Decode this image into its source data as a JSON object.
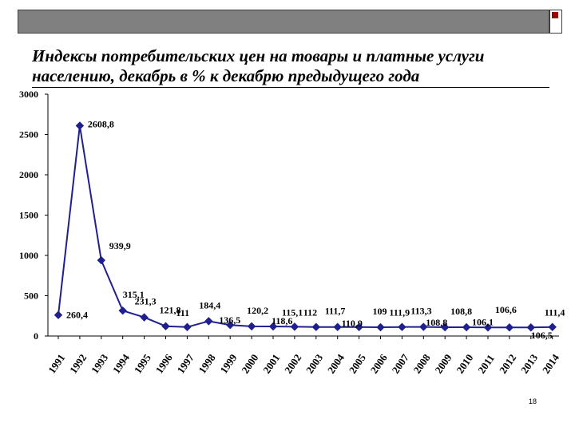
{
  "slide": {
    "title": "Индексы потребительских цен на товары и платные услуги населению, декабрь в % к декабрю предыдущего года",
    "page_number": "18"
  },
  "colors": {
    "line": "#1f1f8f",
    "marker": "#1f1f8f",
    "text": "#000000",
    "top_bar": "#808080",
    "accent": "#a00000"
  },
  "chart_data": {
    "type": "line",
    "title": "",
    "xlabel": "",
    "ylabel": "",
    "ylim": [
      0,
      3000
    ],
    "yticks": [
      "0",
      "500",
      "1000",
      "1500",
      "2000",
      "2500",
      "3000"
    ],
    "categories": [
      "1991",
      "1992",
      "1993",
      "1994",
      "1995",
      "1996",
      "1997",
      "1998",
      "1999",
      "2000",
      "2001",
      "2002",
      "2003",
      "2004",
      "2005",
      "2006",
      "2007",
      "2008",
      "2009",
      "2010",
      "2011",
      "2012",
      "2013",
      "2014"
    ],
    "values": [
      260.4,
      2608.8,
      939.9,
      315.1,
      231.3,
      121.8,
      111,
      184.4,
      136.5,
      120.2,
      118.6,
      115.1,
      112,
      111.7,
      110.9,
      109,
      111.9,
      113.3,
      108.8,
      108.8,
      106.1,
      106.6,
      106.5,
      111.4
    ],
    "data_labels": [
      "260,4",
      "2608,8",
      "939,9",
      "315,1",
      "231,3",
      "121,8",
      "111",
      "184,4",
      "136,5",
      "120,2",
      "118,6",
      "115,1",
      "112",
      "111,7",
      "110,9",
      "109",
      "111,9",
      "113,3",
      "108,8",
      "108,8",
      "106,1",
      "106,6",
      "106,5",
      "111,4"
    ],
    "grid": false,
    "legend": "none"
  }
}
